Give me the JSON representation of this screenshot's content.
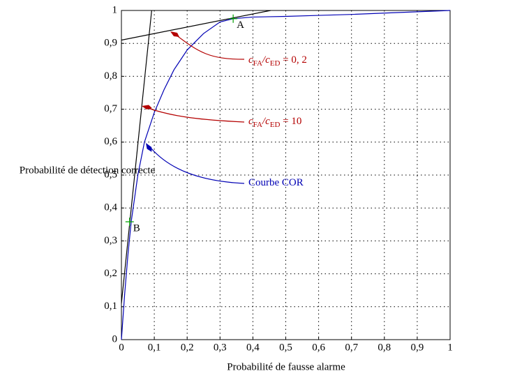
{
  "chart_data": {
    "type": "line",
    "xlabel": "Probabilité de fausse alarme",
    "ylabel": "Probabilité de détection correcte",
    "xlim": [
      0,
      1
    ],
    "ylim": [
      0,
      1
    ],
    "xticks": [
      0,
      {
        "value": 0.1,
        "label": "0,1"
      },
      {
        "value": 0.2,
        "label": "0,2"
      },
      {
        "value": 0.3,
        "label": "0,3"
      },
      {
        "value": 0.4,
        "label": "0,4"
      },
      {
        "value": 0.5,
        "label": "0,5"
      },
      {
        "value": 0.6,
        "label": "0,6"
      },
      {
        "value": 0.7,
        "label": "0,7"
      },
      {
        "value": 0.8,
        "label": "0,8"
      },
      {
        "value": 0.9,
        "label": "0,9"
      },
      1
    ],
    "yticks": [
      0,
      {
        "value": 0.1,
        "label": "0,1"
      },
      {
        "value": 0.2,
        "label": "0,2"
      },
      {
        "value": 0.3,
        "label": "0,3"
      },
      {
        "value": 0.4,
        "label": "0,4"
      },
      {
        "value": 0.5,
        "label": "0,5"
      },
      {
        "value": 0.6,
        "label": "0,6"
      },
      {
        "value": 0.7,
        "label": "0,7"
      },
      {
        "value": 0.8,
        "label": "0,8"
      },
      {
        "value": 0.9,
        "label": "0,9"
      },
      1
    ],
    "grid": true,
    "series": [
      {
        "color": "#0000b4",
        "x": [
          0,
          0.01,
          0.02,
          0.03,
          0.05,
          0.07,
          0.1,
          0.13,
          0.16,
          0.2,
          0.25,
          0.3,
          0.34,
          0.4,
          0.5,
          0.6,
          0.7,
          0.8,
          0.9,
          1
        ],
        "values": [
          0,
          0.14,
          0.26,
          0.36,
          0.5,
          0.6,
          0.69,
          0.76,
          0.82,
          0.88,
          0.93,
          0.965,
          0.975,
          0.98,
          0.982,
          0.985,
          0.988,
          0.992,
          0.996,
          1
        ]
      },
      {
        "color": "#000000",
        "x": [
          0,
          0.092
        ],
        "values": [
          0.11,
          1
        ]
      },
      {
        "color": "#000000",
        "x": [
          0,
          0.454
        ],
        "values": [
          0.91,
          1
        ]
      }
    ],
    "points": [
      {
        "label": "A",
        "x": 0.34,
        "y": 0.975,
        "color": "#00a000"
      },
      {
        "label": "B",
        "x": 0.025,
        "y": 0.358,
        "color": "#00a000"
      }
    ],
    "annotations": [
      {
        "color": "#b40000",
        "parts": [
          "c",
          "FA",
          "/c",
          "ED",
          " = 0, 2"
        ]
      },
      {
        "color": "#b40000",
        "parts": [
          "c",
          "FA",
          "/c",
          "ED",
          " = 10"
        ]
      },
      {
        "color": "#0000b4",
        "parts": [
          "Courbe COR"
        ]
      }
    ]
  }
}
